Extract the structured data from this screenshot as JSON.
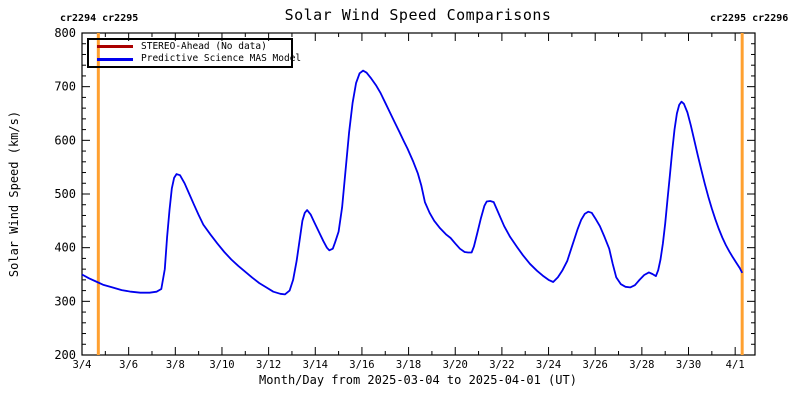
{
  "title": "Solar Wind Speed Comparisons",
  "x_axis_label": "Month/Day from 2025-03-04 to 2025-04-01 (UT)",
  "y_axis_label": "Solar Wind Speed (km/s)",
  "carrington_left_label": "cr2294 cr2295",
  "carrington_right_label": "cr2295 cr2296",
  "colors": {
    "model_line": "#0000ee",
    "stereo_line": "#aa0000",
    "carrington_line": "#ffa030",
    "axis": "#000000",
    "background": "#ffffff"
  },
  "legend": [
    {
      "label": "STEREO-Ahead (No data)",
      "series": "stereo"
    },
    {
      "label": "Predictive Science MAS Model",
      "series": "model"
    }
  ],
  "chart_data": {
    "type": "line",
    "title": "Solar Wind Speed Comparisons",
    "xlabel": "Month/Day from 2025-03-04 to 2025-04-01 (UT)",
    "ylabel": "Solar Wind Speed (km/s)",
    "x_unit": "day-of-march-2025",
    "xlim": [
      4,
      32.85
    ],
    "ylim": [
      200,
      800
    ],
    "grid": false,
    "legend_position": "top-left",
    "x_ticks_major": [
      {
        "day": 4,
        "label": "3/4"
      },
      {
        "day": 6,
        "label": "3/6"
      },
      {
        "day": 8,
        "label": "3/8"
      },
      {
        "day": 10,
        "label": "3/10"
      },
      {
        "day": 12,
        "label": "3/12"
      },
      {
        "day": 14,
        "label": "3/14"
      },
      {
        "day": 16,
        "label": "3/16"
      },
      {
        "day": 18,
        "label": "3/18"
      },
      {
        "day": 20,
        "label": "3/20"
      },
      {
        "day": 22,
        "label": "3/22"
      },
      {
        "day": 24,
        "label": "3/24"
      },
      {
        "day": 26,
        "label": "3/26"
      },
      {
        "day": 28,
        "label": "3/28"
      },
      {
        "day": 30,
        "label": "3/30"
      },
      {
        "day": 32,
        "label": "4/1"
      }
    ],
    "x_minor_step": 1,
    "y_ticks_major": [
      200,
      300,
      400,
      500,
      600,
      700,
      800
    ],
    "y_minor_step": 20,
    "carrington_boundaries": [
      {
        "day": 4.7,
        "left_rotation": "cr2294",
        "right_rotation": "cr2295"
      },
      {
        "day": 32.3,
        "left_rotation": "cr2295",
        "right_rotation": "cr2296"
      }
    ],
    "series": [
      {
        "name": "STEREO-Ahead (No data)",
        "series": "stereo",
        "points": []
      },
      {
        "name": "Predictive Science MAS Model",
        "series": "model",
        "points": [
          [
            4.0,
            350
          ],
          [
            4.3,
            343
          ],
          [
            4.6,
            337
          ],
          [
            4.9,
            331
          ],
          [
            5.3,
            326
          ],
          [
            5.7,
            321
          ],
          [
            6.1,
            318
          ],
          [
            6.5,
            316
          ],
          [
            6.9,
            316
          ],
          [
            7.2,
            318
          ],
          [
            7.4,
            323
          ],
          [
            7.55,
            360
          ],
          [
            7.65,
            420
          ],
          [
            7.75,
            470
          ],
          [
            7.85,
            510
          ],
          [
            7.95,
            530
          ],
          [
            8.05,
            537
          ],
          [
            8.2,
            535
          ],
          [
            8.4,
            520
          ],
          [
            8.6,
            500
          ],
          [
            8.8,
            480
          ],
          [
            9.0,
            461
          ],
          [
            9.2,
            443
          ],
          [
            9.5,
            425
          ],
          [
            9.8,
            408
          ],
          [
            10.1,
            392
          ],
          [
            10.4,
            378
          ],
          [
            10.7,
            366
          ],
          [
            11.0,
            355
          ],
          [
            11.3,
            344
          ],
          [
            11.6,
            334
          ],
          [
            11.9,
            326
          ],
          [
            12.2,
            318
          ],
          [
            12.5,
            314
          ],
          [
            12.7,
            313
          ],
          [
            12.9,
            320
          ],
          [
            13.05,
            340
          ],
          [
            13.2,
            375
          ],
          [
            13.35,
            420
          ],
          [
            13.45,
            450
          ],
          [
            13.55,
            465
          ],
          [
            13.65,
            470
          ],
          [
            13.8,
            462
          ],
          [
            13.95,
            448
          ],
          [
            14.15,
            430
          ],
          [
            14.35,
            412
          ],
          [
            14.5,
            400
          ],
          [
            14.6,
            395
          ],
          [
            14.75,
            398
          ],
          [
            14.85,
            410
          ],
          [
            15.0,
            430
          ],
          [
            15.15,
            475
          ],
          [
            15.3,
            545
          ],
          [
            15.45,
            615
          ],
          [
            15.6,
            670
          ],
          [
            15.75,
            707
          ],
          [
            15.9,
            725
          ],
          [
            16.05,
            730
          ],
          [
            16.2,
            726
          ],
          [
            16.4,
            715
          ],
          [
            16.6,
            703
          ],
          [
            16.8,
            688
          ],
          [
            17.0,
            670
          ],
          [
            17.2,
            652
          ],
          [
            17.4,
            634
          ],
          [
            17.6,
            616
          ],
          [
            17.8,
            598
          ],
          [
            17.95,
            585
          ],
          [
            18.2,
            560
          ],
          [
            18.4,
            538
          ],
          [
            18.55,
            515
          ],
          [
            18.7,
            485
          ],
          [
            18.9,
            465
          ],
          [
            19.1,
            450
          ],
          [
            19.35,
            436
          ],
          [
            19.6,
            425
          ],
          [
            19.8,
            418
          ],
          [
            20.0,
            408
          ],
          [
            20.2,
            398
          ],
          [
            20.4,
            392
          ],
          [
            20.55,
            391
          ],
          [
            20.7,
            391
          ],
          [
            20.8,
            402
          ],
          [
            20.95,
            428
          ],
          [
            21.1,
            455
          ],
          [
            21.25,
            478
          ],
          [
            21.35,
            486
          ],
          [
            21.5,
            487
          ],
          [
            21.65,
            485
          ],
          [
            21.8,
            470
          ],
          [
            21.95,
            455
          ],
          [
            22.1,
            440
          ],
          [
            22.35,
            420
          ],
          [
            22.65,
            401
          ],
          [
            22.9,
            386
          ],
          [
            23.2,
            370
          ],
          [
            23.5,
            357
          ],
          [
            23.75,
            348
          ],
          [
            24.0,
            340
          ],
          [
            24.2,
            336
          ],
          [
            24.4,
            345
          ],
          [
            24.6,
            358
          ],
          [
            24.8,
            375
          ],
          [
            24.95,
            395
          ],
          [
            25.1,
            415
          ],
          [
            25.25,
            435
          ],
          [
            25.4,
            452
          ],
          [
            25.55,
            463
          ],
          [
            25.7,
            467
          ],
          [
            25.85,
            465
          ],
          [
            26.0,
            455
          ],
          [
            26.2,
            440
          ],
          [
            26.4,
            420
          ],
          [
            26.6,
            398
          ],
          [
            26.75,
            370
          ],
          [
            26.9,
            345
          ],
          [
            27.1,
            332
          ],
          [
            27.3,
            327
          ],
          [
            27.5,
            326
          ],
          [
            27.7,
            330
          ],
          [
            27.9,
            340
          ],
          [
            28.1,
            349
          ],
          [
            28.3,
            354
          ],
          [
            28.45,
            351
          ],
          [
            28.6,
            347
          ],
          [
            28.7,
            358
          ],
          [
            28.8,
            378
          ],
          [
            28.9,
            408
          ],
          [
            29.0,
            445
          ],
          [
            29.1,
            490
          ],
          [
            29.2,
            535
          ],
          [
            29.3,
            580
          ],
          [
            29.4,
            620
          ],
          [
            29.5,
            650
          ],
          [
            29.6,
            666
          ],
          [
            29.7,
            672
          ],
          [
            29.8,
            668
          ],
          [
            29.95,
            652
          ],
          [
            30.1,
            628
          ],
          [
            30.25,
            600
          ],
          [
            30.4,
            572
          ],
          [
            30.55,
            545
          ],
          [
            30.7,
            519
          ],
          [
            30.85,
            495
          ],
          [
            31.0,
            473
          ],
          [
            31.15,
            453
          ],
          [
            31.3,
            435
          ],
          [
            31.45,
            419
          ],
          [
            31.6,
            405
          ],
          [
            31.75,
            393
          ],
          [
            31.9,
            382
          ],
          [
            32.05,
            372
          ],
          [
            32.2,
            362
          ],
          [
            32.3,
            353
          ]
        ]
      }
    ]
  }
}
